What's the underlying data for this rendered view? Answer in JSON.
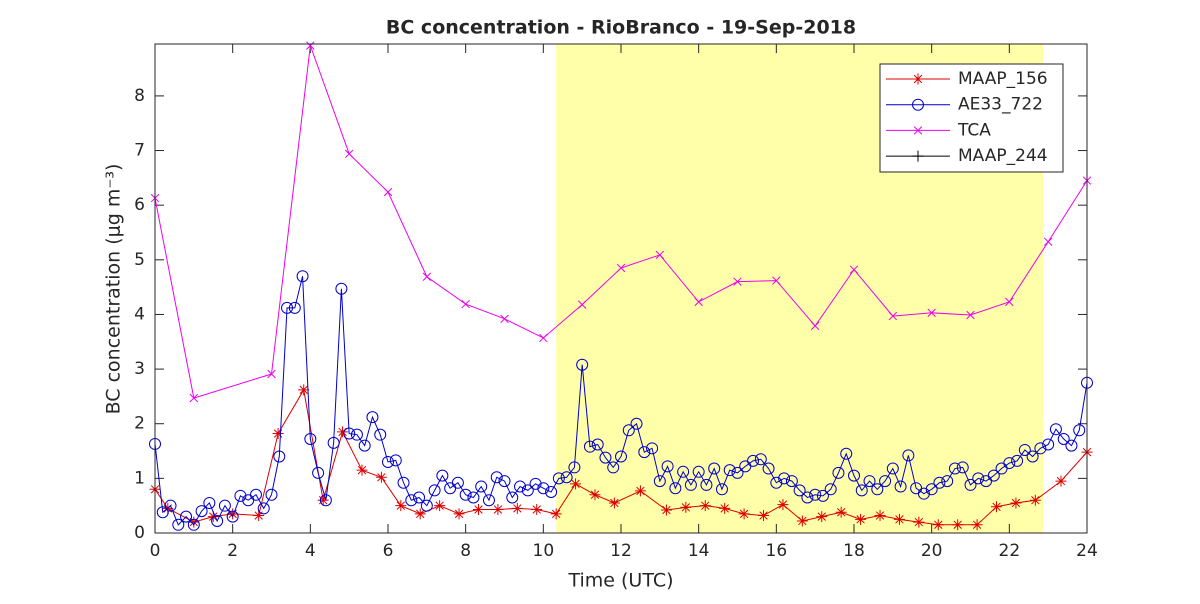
{
  "chart_data": {
    "type": "line",
    "title": "BC concentration  - RioBranco - 19-Sep-2018",
    "xlabel": "Time (UTC)",
    "ylabel": "BC concentration (μg m⁻³)",
    "xlim": [
      0,
      24
    ],
    "xticks": [
      0,
      2,
      4,
      6,
      8,
      10,
      12,
      14,
      16,
      18,
      20,
      22,
      24
    ],
    "ylim": [
      0,
      8.95
    ],
    "yticks": [
      0,
      1,
      2,
      3,
      4,
      5,
      6,
      7,
      8
    ],
    "shaded_region": {
      "x": [
        10.33,
        22.87
      ],
      "color": "#ffffaa"
    },
    "legend": "upper right",
    "series": [
      {
        "name": "MAAP_156",
        "color": "#dd0000",
        "marker": "asterisk",
        "x": [
          0,
          0.33,
          1,
          1.5,
          2,
          2.67,
          3.17,
          3.83,
          4.33,
          4.83,
          5.33,
          5.83,
          6.33,
          6.83,
          7.33,
          7.83,
          8.33,
          8.83,
          9.33,
          9.83,
          10.33,
          10.83,
          11.33,
          11.83,
          12.5,
          13.17,
          13.67,
          14.17,
          14.67,
          15.17,
          15.67,
          16.17,
          16.67,
          17.17,
          17.67,
          18.17,
          18.67,
          19.17,
          19.67,
          20.17,
          20.67,
          21.17,
          21.67,
          22.17,
          22.67,
          23.33,
          24
        ],
        "values": [
          0.8,
          0.45,
          0.2,
          0.3,
          0.35,
          0.32,
          1.82,
          2.62,
          0.6,
          1.85,
          1.15,
          1.02,
          0.5,
          0.35,
          0.5,
          0.35,
          0.43,
          0.43,
          0.45,
          0.43,
          0.35,
          0.9,
          0.7,
          0.55,
          0.77,
          0.42,
          0.47,
          0.5,
          0.45,
          0.35,
          0.32,
          0.52,
          0.22,
          0.3,
          0.38,
          0.25,
          0.32,
          0.25,
          0.2,
          0.15,
          0.15,
          0.15,
          0.48,
          0.55,
          0.6,
          0.95,
          1.48
        ]
      },
      {
        "name": "AE33_722",
        "color": "#0000cc",
        "marker": "circle",
        "x": [
          0,
          0.2,
          0.4,
          0.6,
          0.8,
          1.0,
          1.2,
          1.4,
          1.6,
          1.8,
          2.0,
          2.2,
          2.4,
          2.6,
          2.8,
          3.0,
          3.2,
          3.4,
          3.6,
          3.8,
          4.0,
          4.2,
          4.4,
          4.6,
          4.8,
          5.0,
          5.2,
          5.4,
          5.6,
          5.8,
          6.0,
          6.2,
          6.4,
          6.6,
          6.8,
          7.0,
          7.2,
          7.4,
          7.6,
          7.8,
          8.0,
          8.2,
          8.4,
          8.6,
          8.8,
          9.0,
          9.2,
          9.4,
          9.6,
          9.8,
          10.0,
          10.2,
          10.4,
          10.6,
          10.8,
          11.0,
          11.2,
          11.4,
          11.6,
          11.8,
          12.0,
          12.2,
          12.4,
          12.6,
          12.8,
          13.0,
          13.2,
          13.4,
          13.6,
          13.8,
          14.0,
          14.2,
          14.4,
          14.6,
          14.8,
          15.0,
          15.2,
          15.4,
          15.6,
          15.8,
          16.0,
          16.2,
          16.4,
          16.6,
          16.8,
          17.0,
          17.2,
          17.4,
          17.6,
          17.8,
          18.0,
          18.2,
          18.4,
          18.6,
          18.8,
          19.0,
          19.2,
          19.4,
          19.6,
          19.8,
          20.0,
          20.2,
          20.4,
          20.6,
          20.8,
          21.0,
          21.2,
          21.4,
          21.6,
          21.8,
          22.0,
          22.2,
          22.4,
          22.6,
          22.8,
          23.0,
          23.2,
          23.4,
          23.6,
          23.8,
          24.0
        ],
        "values": [
          1.63,
          0.38,
          0.5,
          0.15,
          0.3,
          0.15,
          0.4,
          0.55,
          0.22,
          0.5,
          0.3,
          0.68,
          0.6,
          0.7,
          0.45,
          0.7,
          1.4,
          4.12,
          4.12,
          4.7,
          1.72,
          1.1,
          0.6,
          1.65,
          4.47,
          1.82,
          1.8,
          1.6,
          2.12,
          1.8,
          1.3,
          1.33,
          0.92,
          0.6,
          0.65,
          0.5,
          0.78,
          1.05,
          0.82,
          0.92,
          0.7,
          0.65,
          0.85,
          0.6,
          1.02,
          0.95,
          0.65,
          0.85,
          0.78,
          0.9,
          0.82,
          0.75,
          1.0,
          1.02,
          1.2,
          3.08,
          1.58,
          1.62,
          1.38,
          1.2,
          1.4,
          1.88,
          2.0,
          1.48,
          1.55,
          0.95,
          1.22,
          0.82,
          1.12,
          0.88,
          1.12,
          0.88,
          1.18,
          0.8,
          1.15,
          1.1,
          1.22,
          1.32,
          1.35,
          1.18,
          0.92,
          1.0,
          0.95,
          0.78,
          0.65,
          0.7,
          0.68,
          0.8,
          1.1,
          1.45,
          1.05,
          0.78,
          0.95,
          0.8,
          0.95,
          1.18,
          0.85,
          1.42,
          0.82,
          0.72,
          0.8,
          0.92,
          0.95,
          1.18,
          1.2,
          0.88,
          1.0,
          0.95,
          1.05,
          1.18,
          1.28,
          1.32,
          1.52,
          1.4,
          1.55,
          1.62,
          1.9,
          1.72,
          1.6,
          1.88,
          2.75
        ]
      },
      {
        "name": "TCA",
        "color": "#ee00ee",
        "marker": "x",
        "x": [
          0,
          1,
          3,
          4,
          5,
          6,
          7,
          8,
          9,
          10,
          11,
          12,
          13,
          14,
          15,
          16,
          17,
          18,
          19,
          20,
          21,
          22,
          23,
          24
        ],
        "values": [
          6.13,
          2.47,
          2.91,
          8.92,
          6.94,
          6.24,
          4.69,
          4.19,
          3.92,
          3.57,
          4.18,
          4.85,
          5.09,
          4.23,
          4.6,
          4.62,
          3.79,
          4.82,
          3.97,
          4.03,
          3.99,
          4.23,
          5.33,
          6.45
        ]
      },
      {
        "name": "MAAP_244",
        "color": "#000000",
        "marker": "plus",
        "x": [],
        "values": []
      }
    ]
  }
}
